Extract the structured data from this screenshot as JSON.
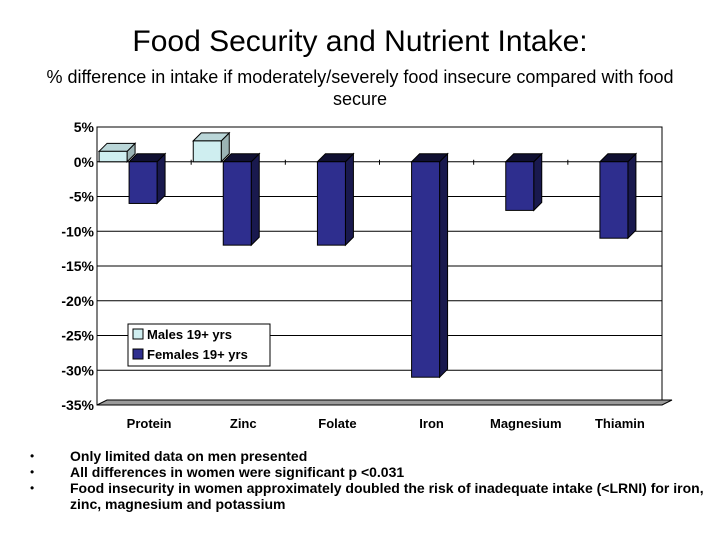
{
  "slide": {
    "title": "Food Security and Nutrient Intake:",
    "subtitle": "% difference in intake if moderately/severely food insecure compared with food secure"
  },
  "chart_data": {
    "type": "bar",
    "title": "",
    "xlabel": "",
    "ylabel": "",
    "categories": [
      "Protein",
      "Zinc",
      "Folate",
      "Iron",
      "Magnesium",
      "Thiamin"
    ],
    "series": [
      {
        "name": "Males 19+ yrs",
        "color": "#cfeef0",
        "values": [
          1.5,
          3,
          null,
          null,
          null,
          null
        ]
      },
      {
        "name": "Females 19+ yrs",
        "color": "#2e2e8e",
        "values": [
          -6,
          -12,
          -12,
          -31,
          -7,
          -11
        ]
      }
    ],
    "ylim": [
      -35,
      5
    ],
    "yticks": [
      "5%",
      "0%",
      "-5%",
      "-10%",
      "-15%",
      "-20%",
      "-25%",
      "-30%",
      "-35%"
    ],
    "grid": true,
    "legend_position": "lower-left"
  },
  "notes": [
    "Only limited data on men presented",
    "All differences in women were significant p <0.031",
    "Food insecurity in women approximately doubled the risk of inadequate intake (<LRNI)  for iron, zinc, magnesium and potassium"
  ]
}
